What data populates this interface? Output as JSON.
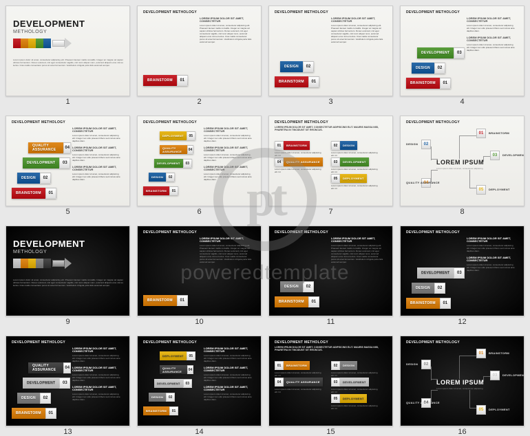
{
  "watermark": {
    "logo_text": "pt",
    "brand_text": "poweredtemplate"
  },
  "colors": {
    "red": "#c8252c",
    "blue": "#2a6aa8",
    "green": "#5a9e3d",
    "orange": "#e08a1e",
    "yellow": "#e8b81c",
    "gray": "#8a8a8a",
    "darkgray": "#4a4a4a",
    "lightgray": "#cfcfcf"
  },
  "common": {
    "header": "DEVELOPMENT METHOLOGY",
    "big_title": "DEVELOPMENT",
    "sub_title": "METHOLOGY",
    "lorem_ipsum_title": "LOREM IPSUM",
    "labels": {
      "brainstorm": "BRAINSTORM",
      "design": "DESIGN",
      "development": "DEVELOPMENT",
      "quality": "QUALITY ASSURANCE",
      "deployment": "DEPLOYMENT"
    },
    "nums": {
      "n01": "01",
      "n02": "02",
      "n03": "03",
      "n04": "04",
      "n05": "05"
    },
    "lorem_short": "Lorem ipsum dolor sit amet, consectetur adipiscing elit. Integer nec odio praesent libero sed cursus ante dapibus diam.",
    "lorem_long": "Lorem ipsum dolor sit amet, consectetur adipiscing elit. Praesent laoreet mattis convallis. Integer ac magna vel sapien ultrices fermentum. Donec euismod, nisl eget consectetur sagittis, nisl nunc aliquet nunc, euismod aliquam eros nisl eu lectus. Cras mattis consectetur purus sit amet fermentum. Vestibulum id ligula porta felis euismod semper.",
    "para_heading": "LOREM IPSUM DOLOR SIT AMET, CONSECTETUR",
    "text_heading": "LOREM IPSUM DOLOR SIT AMET, CONSECTETUR ADIPISCING ELIT. MAURIS MASSA NISI, PHARETRA IN TINCIDUNT SIT RHONCUS."
  },
  "slides": [
    {
      "n": 1,
      "theme": "light",
      "layout": "title",
      "arrow_colors": [
        "#c8252c",
        "#e08a1e",
        "#e8b81c",
        "#5a9e3d",
        "#2a6aa8"
      ]
    },
    {
      "n": 2,
      "theme": "light",
      "layout": "one_step",
      "steps": [
        {
          "num": "01",
          "label": "BRAINSTORM",
          "color": "#c8252c"
        }
      ]
    },
    {
      "n": 3,
      "theme": "light",
      "layout": "two_step",
      "steps": [
        {
          "num": "02",
          "label": "DESIGN",
          "color": "#2a6aa8"
        },
        {
          "num": "01",
          "label": "BRAINSTORM",
          "color": "#c8252c"
        }
      ]
    },
    {
      "n": 4,
      "theme": "light",
      "layout": "three_step",
      "steps": [
        {
          "num": "03",
          "label": "DEVELOPMENT",
          "color": "#5a9e3d"
        },
        {
          "num": "02",
          "label": "DESIGN",
          "color": "#2a6aa8"
        },
        {
          "num": "01",
          "label": "BRAINSTORM",
          "color": "#c8252c"
        }
      ]
    },
    {
      "n": 5,
      "theme": "light",
      "layout": "four_step",
      "steps": [
        {
          "num": "04",
          "label": "QUALITY ASSURANCE",
          "color": "#e08a1e"
        },
        {
          "num": "03",
          "label": "DEVELOPMENT",
          "color": "#5a9e3d"
        },
        {
          "num": "02",
          "label": "DESIGN",
          "color": "#2a6aa8"
        },
        {
          "num": "01",
          "label": "BRAINSTORM",
          "color": "#c8252c"
        }
      ]
    },
    {
      "n": 6,
      "theme": "light",
      "layout": "five_step",
      "steps": [
        {
          "num": "05",
          "label": "DEPLOYMENT",
          "color": "#e8b81c"
        },
        {
          "num": "04",
          "label": "QUALITY ASSURANCE",
          "color": "#e08a1e"
        },
        {
          "num": "03",
          "label": "DEVELOPMENT",
          "color": "#5a9e3d"
        },
        {
          "num": "02",
          "label": "DESIGN",
          "color": "#2a6aa8"
        },
        {
          "num": "01",
          "label": "BRAINSTORM",
          "color": "#c8252c"
        }
      ]
    },
    {
      "n": 7,
      "theme": "light",
      "layout": "grid5",
      "steps": [
        {
          "num": "01",
          "label": "BRAINSTORM",
          "color": "#c8252c"
        },
        {
          "num": "02",
          "label": "DESIGN",
          "color": "#2a6aa8"
        },
        {
          "num": "03",
          "label": "DEVELOPMENT",
          "color": "#5a9e3d"
        },
        {
          "num": "04",
          "label": "QUALITY ASSURANCE",
          "color": "#e08a1e"
        },
        {
          "num": "05",
          "label": "DEPLOYMENT",
          "color": "#e8b81c"
        }
      ]
    },
    {
      "n": 8,
      "theme": "light",
      "layout": "radial",
      "nodes": [
        {
          "num": "01",
          "label": "BRAINSTORM",
          "color": "#c8252c"
        },
        {
          "num": "02",
          "label": "DESIGN",
          "color": "#2a6aa8"
        },
        {
          "num": "03",
          "label": "DEVELOPMENT",
          "color": "#5a9e3d"
        },
        {
          "num": "04",
          "label": "QUALITY ASSURANCE",
          "color": "#e08a1e"
        },
        {
          "num": "05",
          "label": "DEPLOYMENT",
          "color": "#e8b81c"
        }
      ]
    },
    {
      "n": 9,
      "theme": "dark",
      "layout": "title",
      "arrow_colors": [
        "#cfcfcf",
        "#e08a1e",
        "#e8b81c",
        "#8a8a8a",
        "#4a4a4a"
      ]
    },
    {
      "n": 10,
      "theme": "dark",
      "layout": "one_step",
      "steps": [
        {
          "num": "01",
          "label": "BRAINSTORM",
          "color": "#e08a1e"
        }
      ]
    },
    {
      "n": 11,
      "theme": "dark",
      "layout": "two_step",
      "steps": [
        {
          "num": "02",
          "label": "DESIGN",
          "color": "#8a8a8a"
        },
        {
          "num": "01",
          "label": "BRAINSTORM",
          "color": "#e08a1e"
        }
      ]
    },
    {
      "n": 12,
      "theme": "dark",
      "layout": "three_step",
      "steps": [
        {
          "num": "03",
          "label": "DEVELOPMENT",
          "color": "#cfcfcf",
          "text": "#333"
        },
        {
          "num": "02",
          "label": "DESIGN",
          "color": "#8a8a8a"
        },
        {
          "num": "01",
          "label": "BRAINSTORM",
          "color": "#e08a1e"
        }
      ]
    },
    {
      "n": 13,
      "theme": "dark",
      "layout": "four_step",
      "steps": [
        {
          "num": "04",
          "label": "QUALITY ASSURANCE",
          "color": "#4a4a4a"
        },
        {
          "num": "03",
          "label": "DEVELOPMENT",
          "color": "#cfcfcf",
          "text": "#333"
        },
        {
          "num": "02",
          "label": "DESIGN",
          "color": "#8a8a8a"
        },
        {
          "num": "01",
          "label": "BRAINSTORM",
          "color": "#e08a1e"
        }
      ]
    },
    {
      "n": 14,
      "theme": "dark",
      "layout": "five_step",
      "steps": [
        {
          "num": "05",
          "label": "DEPLOYMENT",
          "color": "#e8b81c",
          "text": "#333"
        },
        {
          "num": "04",
          "label": "QUALITY ASSURANCE",
          "color": "#4a4a4a"
        },
        {
          "num": "03",
          "label": "DEVELOPMENT",
          "color": "#cfcfcf",
          "text": "#333"
        },
        {
          "num": "02",
          "label": "DESIGN",
          "color": "#8a8a8a"
        },
        {
          "num": "01",
          "label": "BRAINSTORM",
          "color": "#e08a1e"
        }
      ]
    },
    {
      "n": 15,
      "theme": "dark",
      "layout": "grid5",
      "steps": [
        {
          "num": "01",
          "label": "BRAINSTORM",
          "color": "#e08a1e"
        },
        {
          "num": "02",
          "label": "DESIGN",
          "color": "#8a8a8a"
        },
        {
          "num": "03",
          "label": "DEVELOPMENT",
          "color": "#cfcfcf",
          "text": "#333"
        },
        {
          "num": "04",
          "label": "QUALITY ASSURANCE",
          "color": "#4a4a4a"
        },
        {
          "num": "05",
          "label": "DEPLOYMENT",
          "color": "#e8b81c",
          "text": "#333"
        }
      ]
    },
    {
      "n": 16,
      "theme": "dark",
      "layout": "radial",
      "nodes": [
        {
          "num": "01",
          "label": "BRAINSTORM",
          "color": "#e08a1e"
        },
        {
          "num": "02",
          "label": "DESIGN",
          "color": "#8a8a8a"
        },
        {
          "num": "03",
          "label": "DEVELOPMENT",
          "color": "#cfcfcf"
        },
        {
          "num": "04",
          "label": "QUALITY ASSURANCE",
          "color": "#4a4a4a"
        },
        {
          "num": "05",
          "label": "DEPLOYMENT",
          "color": "#e8b81c"
        }
      ]
    }
  ]
}
